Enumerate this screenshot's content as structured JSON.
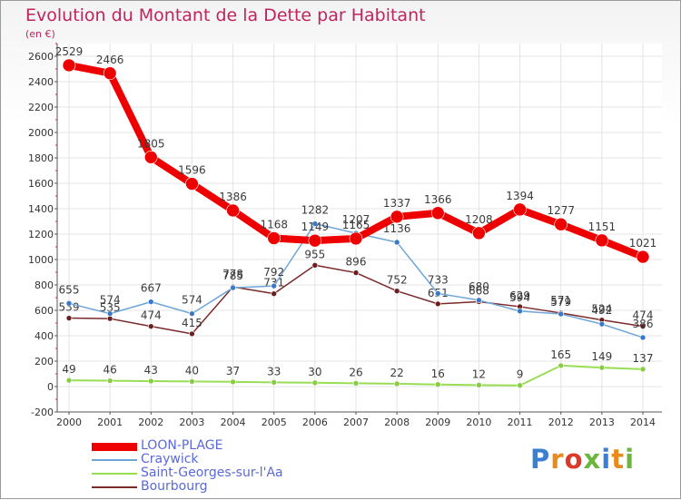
{
  "title": "Evolution du Montant de la Dette par Habitant",
  "subtitle": "(en €)",
  "brand": {
    "text": "Proxiti",
    "letter_colors": [
      "#3a7fd0",
      "#e98a1c",
      "#d93a2a",
      "#6cb640",
      "#3a7fd0",
      "#e98a1c",
      "#6cb640"
    ]
  },
  "chart_data": {
    "type": "line",
    "x": [
      "2000",
      "2001",
      "2002",
      "2003",
      "2004",
      "2005",
      "2006",
      "2007",
      "2008",
      "2009",
      "2010",
      "2011",
      "2012",
      "2013",
      "2014"
    ],
    "yticks": [
      -200,
      0,
      200,
      400,
      600,
      800,
      1000,
      1200,
      1400,
      1600,
      1800,
      2000,
      2200,
      2400,
      2600
    ],
    "ylim": [
      -200,
      2700
    ],
    "grid": true,
    "legend_position": "bottom-left",
    "series": [
      {
        "name": "Saint-Georges-sur-l'Aa",
        "color": "#99dd55",
        "marker_color": "#88cc44",
        "values": [
          49,
          46,
          43,
          40,
          37,
          33,
          30,
          26,
          22,
          16,
          12,
          9,
          165,
          149,
          137
        ],
        "labels": [
          "49",
          "46",
          "43",
          "40",
          "37",
          "33",
          "30",
          "26",
          "22",
          "16",
          "12",
          "9",
          "165",
          "149",
          "137"
        ]
      },
      {
        "name": "Bourbourg",
        "color": "#7a2a2a",
        "marker_color": "#6b1f1f",
        "values": [
          539,
          535,
          474,
          415,
          785,
          731,
          955,
          896,
          752,
          651,
          668,
          629,
          579,
          524,
          474
        ],
        "labels": [
          "539",
          "535",
          "474",
          "415",
          "785",
          "731",
          "955",
          "896",
          "752",
          "651",
          "668",
          "629",
          "579",
          "524",
          "474"
        ]
      },
      {
        "name": "Craywick",
        "color": "#6fa6d8",
        "marker_color": "#3a78c8",
        "values": [
          655,
          574,
          667,
          574,
          778,
          792,
          1282,
          1207,
          1136,
          733,
          680,
          594,
          571,
          492,
          386
        ],
        "labels": [
          "655",
          "574",
          "667",
          "574",
          "778",
          "792",
          "1282",
          "1207",
          "1136",
          "733",
          "680",
          "594",
          "571",
          "492",
          "386"
        ]
      },
      {
        "name": "LOON-PLAGE",
        "color": "#ee0000",
        "marker_color": "#ee0000",
        "values": [
          2529,
          2466,
          1805,
          1596,
          1386,
          1168,
          1149,
          1165,
          1337,
          1366,
          1208,
          1394,
          1277,
          1151,
          1021
        ],
        "labels": [
          "2529",
          "2466",
          "1805",
          "1596",
          "1386",
          "1168",
          "1149",
          "1165",
          "1337",
          "1366",
          "1208",
          "1394",
          "1277",
          "1151",
          "1021"
        ]
      }
    ],
    "legend_order": [
      "LOON-PLAGE",
      "Craywick",
      "Saint-Georges-sur-l'Aa",
      "Bourbourg"
    ]
  }
}
